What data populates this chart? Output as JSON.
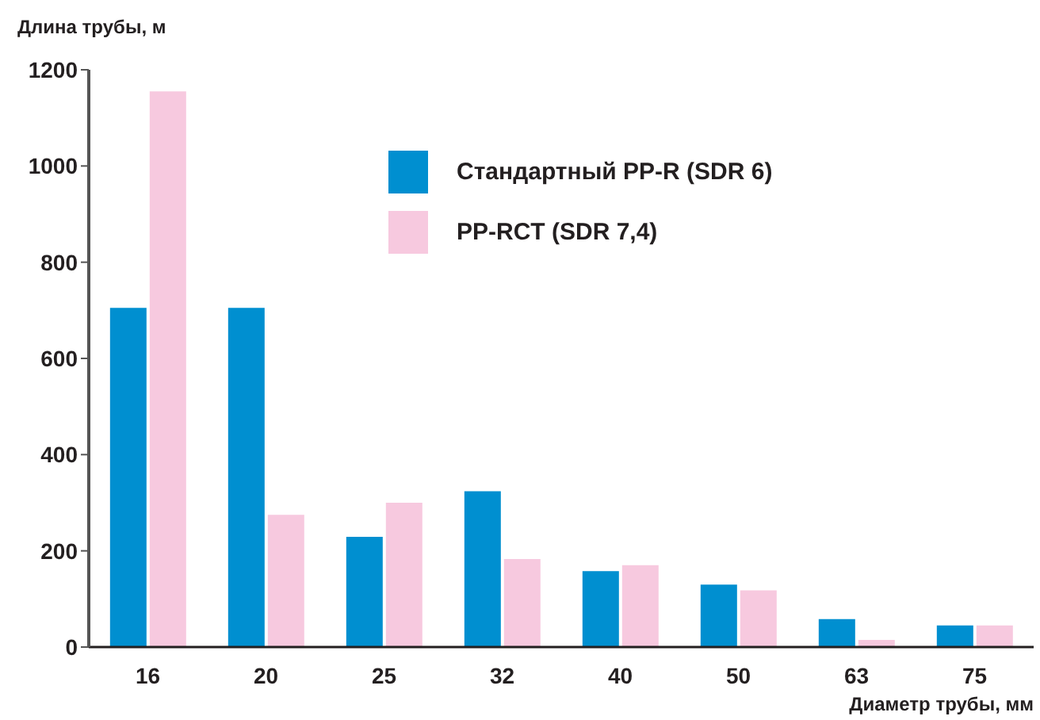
{
  "chart_data": {
    "type": "bar",
    "ylabel": "Длина трубы, м",
    "xlabel": "Диаметр трубы, мм",
    "categories": [
      "16",
      "20",
      "25",
      "32",
      "40",
      "50",
      "63",
      "75"
    ],
    "series": [
      {
        "name": "Стандартный PP-R (SDR 6)",
        "color": "#008fd0",
        "values": [
          705,
          705,
          229,
          324,
          158,
          130,
          58,
          45
        ]
      },
      {
        "name": "PP-RCT (SDR 7,4)",
        "color": "#f7c9df",
        "values": [
          1155,
          275,
          300,
          183,
          170,
          118,
          15,
          45
        ]
      }
    ],
    "ylim": [
      0,
      1200
    ],
    "yticks": [
      0,
      200,
      400,
      600,
      800,
      1000,
      1200
    ],
    "grid": false,
    "legend": "top right"
  }
}
